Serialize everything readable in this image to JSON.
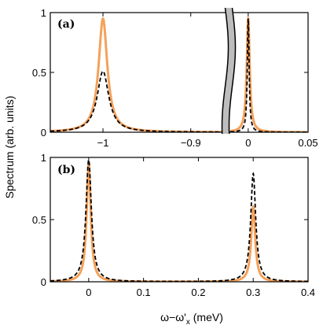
{
  "ylabel": "Spectrum (arb. units)",
  "xlabel": "ω−ω'",
  "xlabel_sub": "x",
  "xlabel_unit": " (meV)",
  "colors": {
    "orange": "#F5A15A",
    "black": "#000000",
    "break_fill": "#bdbdbd"
  },
  "chart_data": [
    {
      "type": "line",
      "panel_label": "(a)",
      "xlabel": "",
      "ylabel": "",
      "axis_break": true,
      "segments": [
        {
          "xlim": [
            -1.06,
            -0.855
          ],
          "xticks": [
            -1,
            -0.9
          ],
          "xtick_labels": [
            "−1",
            "−0.9"
          ]
        },
        {
          "xlim": [
            -0.015,
            0.05
          ],
          "xticks": [
            0,
            0.05
          ],
          "xtick_labels": [
            "0",
            "0.05"
          ]
        }
      ],
      "ylim": [
        0,
        1
      ],
      "yticks": [
        0,
        0.5,
        1
      ],
      "ytick_labels": [
        "0",
        "0.5",
        "1"
      ],
      "series": [
        {
          "style": "solid",
          "color": "#F5A15A",
          "peaks": [
            {
              "x0": -1.0,
              "height": 0.95,
              "hwhm": 0.006
            },
            {
              "x0": 0.0,
              "height": 0.95,
              "hwhm": 0.0015
            }
          ]
        },
        {
          "style": "dashed",
          "color": "#000000",
          "peaks": [
            {
              "x0": -1.0,
              "height": 0.51,
              "hwhm": 0.008
            },
            {
              "x0": 0.0,
              "height": 0.95,
              "hwhm": 0.0009
            }
          ]
        }
      ]
    },
    {
      "type": "line",
      "panel_label": "(b)",
      "xlabel": "",
      "ylabel": "",
      "xlim": [
        -0.07,
        0.4
      ],
      "xticks": [
        0,
        0.1,
        0.2,
        0.3,
        0.4
      ],
      "xtick_labels": [
        "0",
        "0.1",
        "0.2",
        "0.3",
        "0.4"
      ],
      "ylim": [
        0,
        1
      ],
      "yticks": [
        0,
        0.5,
        1
      ],
      "ytick_labels": [
        "0",
        "0.5",
        "1"
      ],
      "series": [
        {
          "style": "solid",
          "color": "#F5A15A",
          "peaks": [
            {
              "x0": 0.0,
              "height": 0.95,
              "hwhm": 0.0045
            },
            {
              "x0": 0.3,
              "height": 0.6,
              "hwhm": 0.0045
            }
          ]
        },
        {
          "style": "dashed",
          "color": "#000000",
          "peaks": [
            {
              "x0": 0.0,
              "height": 0.98,
              "hwhm": 0.006
            },
            {
              "x0": 0.3,
              "height": 0.87,
              "hwhm": 0.0055
            }
          ]
        }
      ]
    }
  ]
}
